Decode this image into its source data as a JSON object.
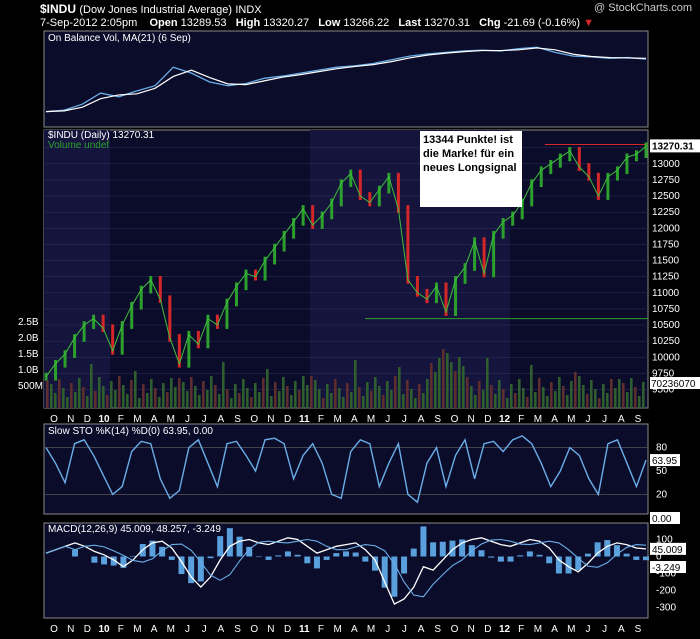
{
  "header": {
    "symbol": "$INDU",
    "name": "(Dow Jones Industrial Average)",
    "exchange": "INDX",
    "watermark": "@ StockCharts.com",
    "date": "7-Sep-2012 2:05pm",
    "open_label": "Open",
    "open": "13289.53",
    "high_label": "High",
    "high": "13320.27",
    "low_label": "Low",
    "low": "13266.22",
    "last_label": "Last",
    "last": "13270.31",
    "chg_label": "Chg",
    "chg": "-21.69 (-0.16%)"
  },
  "annotation": {
    "text": "13344 Punkte! ist die Marke! für ein neues Longsignal",
    "color": "#ffffff"
  },
  "colors": {
    "up": "#2ca02c",
    "down": "#d62728",
    "line": "#6aaee8",
    "background": "#000000",
    "panel": "#0b0b2a"
  },
  "chart_data": [
    {
      "type": "line",
      "title": "On Balance Vol, MA(21) (6 Sep)",
      "series": [
        {
          "name": "On Balance Vol"
        },
        {
          "name": "MA(21)"
        }
      ],
      "values": [
        0.1,
        0.12,
        0.2,
        0.35,
        0.3,
        0.38,
        0.45,
        0.7,
        0.62,
        0.5,
        0.45,
        0.48,
        0.55,
        0.58,
        0.62,
        0.66,
        0.7,
        0.72,
        0.75,
        0.8,
        0.85,
        0.88,
        0.9,
        0.92,
        0.93,
        0.92,
        0.95,
        0.97,
        0.9,
        0.85,
        0.84,
        0.82,
        0.83,
        0.81
      ]
    },
    {
      "type": "line",
      "title": "$INDU (Daily) 13270.31",
      "legend": [
        "$INDU (Daily) 13270.31",
        "Volume undef"
      ],
      "x_ticks": [
        "O",
        "N",
        "D",
        "10",
        "F",
        "M",
        "A",
        "M",
        "J",
        "J",
        "A",
        "S",
        "O",
        "N",
        "D",
        "11",
        "F",
        "M",
        "A",
        "M",
        "J",
        "J",
        "A",
        "S",
        "O",
        "N",
        "D",
        "12",
        "F",
        "M",
        "A",
        "M",
        "J",
        "J",
        "A",
        "S"
      ],
      "y_ticks": [
        9500,
        9750,
        10000,
        10250,
        10500,
        10750,
        11000,
        11250,
        11500,
        11750,
        12000,
        12250,
        12500,
        12750,
        13000,
        13250
      ],
      "last_label": "13270.31",
      "volume_ticks": [
        "2.5B",
        "2.0B",
        "1.5B",
        "1.0B",
        "500M"
      ],
      "volume_last": "70236070",
      "ylim": [
        9400,
        13400
      ],
      "support_level": 10600,
      "resistance_level": 13300,
      "values": [
        9700,
        9900,
        10050,
        10300,
        10500,
        10600,
        10450,
        10100,
        10500,
        10800,
        11050,
        11200,
        10900,
        10300,
        9900,
        10350,
        10200,
        10600,
        10500,
        10850,
        11100,
        11300,
        11250,
        11500,
        11700,
        11900,
        12100,
        12300,
        12050,
        12200,
        12400,
        12700,
        12850,
        12500,
        12400,
        12600,
        12800,
        12300,
        11200,
        11000,
        10900,
        11100,
        10700,
        11200,
        11400,
        11800,
        11300,
        11900,
        12100,
        12200,
        12400,
        12700,
        12900,
        13000,
        13100,
        13200,
        12950,
        12800,
        12500,
        12800,
        12900,
        13100,
        13150,
        13270
      ]
    },
    {
      "type": "line",
      "title": "Slow STO %K(14) %D(0) 63.95, 0.00",
      "y_ticks": [
        80,
        50,
        20
      ],
      "last_label": "63.95",
      "zero_label": "0.00",
      "ylim": [
        0,
        100
      ],
      "values": [
        80,
        60,
        35,
        85,
        90,
        70,
        45,
        20,
        30,
        75,
        88,
        85,
        40,
        15,
        25,
        80,
        90,
        60,
        30,
        85,
        88,
        70,
        50,
        90,
        92,
        85,
        40,
        70,
        85,
        60,
        20,
        15,
        75,
        90,
        85,
        30,
        60,
        85,
        20,
        10,
        60,
        80,
        30,
        70,
        90,
        40,
        85,
        88,
        75,
        90,
        95,
        85,
        60,
        30,
        50,
        80,
        70,
        40,
        20,
        85,
        90,
        60,
        30,
        64
      ]
    },
    {
      "type": "line",
      "title": "MACD(12,26,9) 45.009, 48.257, -3.249",
      "series": [
        {
          "name": "MACD"
        },
        {
          "name": "Signal"
        },
        {
          "name": "Histogram"
        }
      ],
      "y_ticks": [
        100,
        0,
        -100,
        -200,
        -300
      ],
      "last_labels": [
        "45.009",
        "-3.249"
      ],
      "ylim": [
        -350,
        150
      ],
      "values": [
        20,
        40,
        60,
        80,
        60,
        30,
        10,
        -20,
        -60,
        -20,
        40,
        80,
        90,
        50,
        -30,
        -120,
        -180,
        -120,
        -20,
        60,
        90,
        100,
        80,
        70,
        90,
        110,
        100,
        60,
        20,
        40,
        60,
        70,
        80,
        40,
        -20,
        -150,
        -280,
        -250,
        -180,
        -60,
        -80,
        -20,
        40,
        80,
        100,
        110,
        90,
        70,
        60,
        80,
        100,
        90,
        50,
        -20,
        -60,
        -90,
        -40,
        20,
        60,
        80,
        70,
        50,
        45
      ]
    }
  ]
}
